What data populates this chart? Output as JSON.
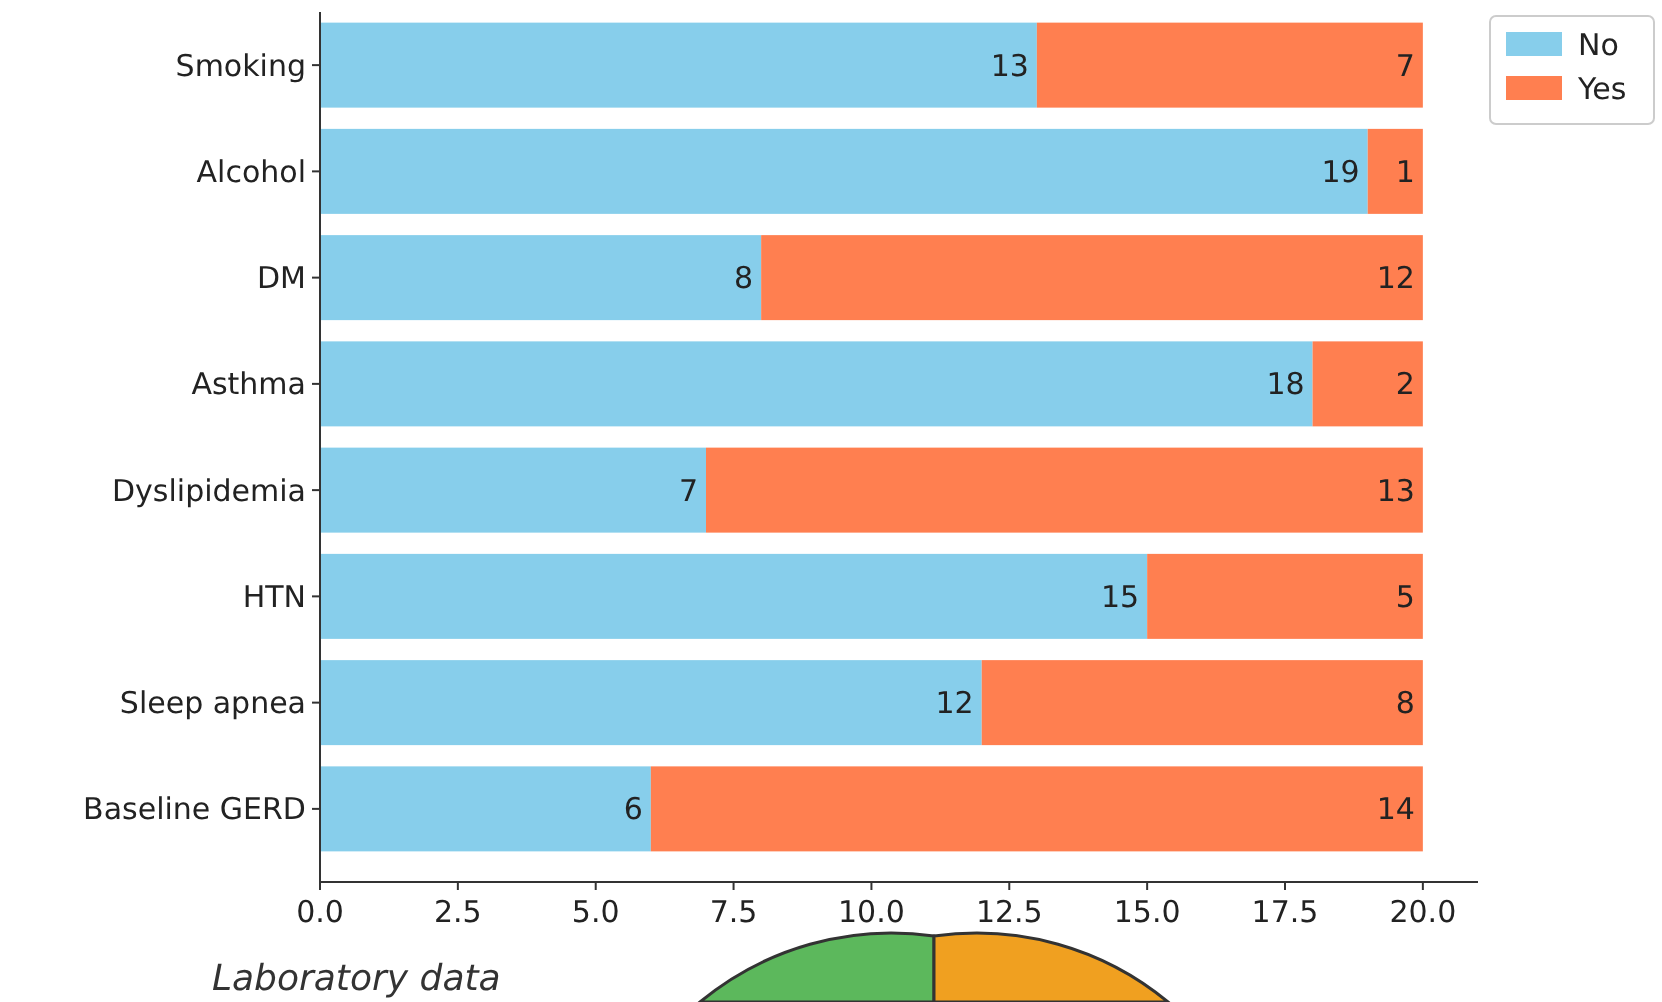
{
  "chart_data": {
    "type": "bar",
    "orientation": "horizontal",
    "stacked": true,
    "categories": [
      "Smoking",
      "Alcohol",
      "DM",
      "Asthma",
      "Dyslipidemia",
      "HTN",
      "Sleep apnea",
      "Baseline GERD"
    ],
    "series": [
      {
        "name": "No",
        "color": "#87ceeb",
        "values": [
          13,
          19,
          8,
          18,
          7,
          15,
          12,
          6
        ]
      },
      {
        "name": "Yes",
        "color": "#ff7f50",
        "values": [
          7,
          1,
          12,
          2,
          13,
          5,
          8,
          14
        ]
      }
    ],
    "xlim": [
      0,
      21
    ],
    "xticks": [
      {
        "value": 0,
        "label": "0.0"
      },
      {
        "value": 2.5,
        "label": "2.5"
      },
      {
        "value": 5,
        "label": "5.0"
      },
      {
        "value": 7.5,
        "label": "7.5"
      },
      {
        "value": 10,
        "label": "10.0"
      },
      {
        "value": 12.5,
        "label": "12.5"
      },
      {
        "value": 15,
        "label": "15.0"
      },
      {
        "value": 17.5,
        "label": "17.5"
      },
      {
        "value": 20,
        "label": "20.0"
      }
    ],
    "data_labels": true,
    "legend": "top right",
    "grid": false,
    "annotations": [
      "Laboratory data"
    ]
  }
}
